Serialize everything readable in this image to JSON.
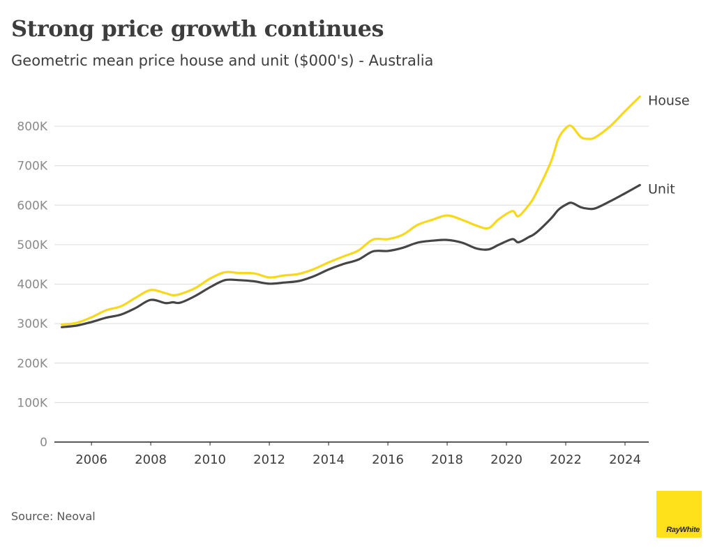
{
  "header": {
    "title": "Strong price growth continues",
    "subtitle": "Geometric mean price house and unit ($000's) - Australia"
  },
  "footer": {
    "source": "Source: Neoval",
    "logo_text": "RayWhite"
  },
  "colors": {
    "house": "#f7d81c",
    "unit": "#454545",
    "grid": "#dcdcdc",
    "axis": "#222222",
    "logo_bg": "#ffe11b"
  },
  "chart_data": {
    "type": "line",
    "title": "Strong price growth continues",
    "subtitle": "Geometric mean price house and unit ($000's) - Australia",
    "xlabel": "",
    "ylabel": "",
    "ylim": [
      0,
      800000
    ],
    "xlim": [
      2004.75,
      2024.8
    ],
    "y_ticks": [
      0,
      100000,
      200000,
      300000,
      400000,
      500000,
      600000,
      700000,
      800000
    ],
    "y_tick_labels": [
      "0",
      "100K",
      "200K",
      "300K",
      "400K",
      "500K",
      "600K",
      "700K",
      "800K"
    ],
    "x_ticks": [
      2006,
      2008,
      2010,
      2012,
      2014,
      2016,
      2018,
      2020,
      2022,
      2024
    ],
    "x_tick_labels": [
      "2006",
      "2008",
      "2010",
      "2012",
      "2014",
      "2016",
      "2018",
      "2020",
      "2022",
      "2024"
    ],
    "grid": true,
    "legend": "direct labels at line ends (right)",
    "series": [
      {
        "name": "House",
        "points": [
          [
            2005.0,
            298000
          ],
          [
            2005.5,
            302000
          ],
          [
            2006.0,
            316000
          ],
          [
            2006.5,
            334000
          ],
          [
            2007.0,
            344000
          ],
          [
            2007.5,
            366000
          ],
          [
            2008.0,
            385000
          ],
          [
            2008.5,
            377000
          ],
          [
            2008.75,
            372000
          ],
          [
            2009.0,
            375000
          ],
          [
            2009.5,
            390000
          ],
          [
            2010.0,
            414000
          ],
          [
            2010.5,
            430000
          ],
          [
            2011.0,
            428000
          ],
          [
            2011.5,
            427000
          ],
          [
            2012.0,
            417000
          ],
          [
            2012.5,
            422000
          ],
          [
            2013.0,
            426000
          ],
          [
            2013.5,
            438000
          ],
          [
            2014.0,
            455000
          ],
          [
            2014.5,
            470000
          ],
          [
            2015.0,
            485000
          ],
          [
            2015.5,
            513000
          ],
          [
            2016.0,
            514000
          ],
          [
            2016.5,
            525000
          ],
          [
            2017.0,
            550000
          ],
          [
            2017.5,
            563000
          ],
          [
            2018.0,
            574000
          ],
          [
            2018.5,
            563000
          ],
          [
            2019.0,
            548000
          ],
          [
            2019.4,
            542000
          ],
          [
            2019.75,
            565000
          ],
          [
            2020.2,
            585000
          ],
          [
            2020.4,
            572000
          ],
          [
            2020.75,
            600000
          ],
          [
            2021.0,
            630000
          ],
          [
            2021.5,
            710000
          ],
          [
            2021.75,
            768000
          ],
          [
            2022.0,
            795000
          ],
          [
            2022.2,
            800000
          ],
          [
            2022.5,
            773000
          ],
          [
            2022.75,
            768000
          ],
          [
            2023.0,
            772000
          ],
          [
            2023.5,
            800000
          ],
          [
            2024.0,
            838000
          ],
          [
            2024.5,
            875000
          ]
        ]
      },
      {
        "name": "Unit",
        "points": [
          [
            2005.0,
            291000
          ],
          [
            2005.5,
            295000
          ],
          [
            2006.0,
            304000
          ],
          [
            2006.5,
            315000
          ],
          [
            2007.0,
            323000
          ],
          [
            2007.5,
            340000
          ],
          [
            2008.0,
            360000
          ],
          [
            2008.5,
            352000
          ],
          [
            2008.75,
            354000
          ],
          [
            2009.0,
            353000
          ],
          [
            2009.5,
            370000
          ],
          [
            2010.0,
            392000
          ],
          [
            2010.5,
            410000
          ],
          [
            2011.0,
            410000
          ],
          [
            2011.5,
            407000
          ],
          [
            2012.0,
            401000
          ],
          [
            2012.5,
            404000
          ],
          [
            2013.0,
            408000
          ],
          [
            2013.5,
            420000
          ],
          [
            2014.0,
            437000
          ],
          [
            2014.5,
            451000
          ],
          [
            2015.0,
            462000
          ],
          [
            2015.5,
            483000
          ],
          [
            2016.0,
            484000
          ],
          [
            2016.5,
            492000
          ],
          [
            2017.0,
            505000
          ],
          [
            2017.5,
            510000
          ],
          [
            2018.0,
            512000
          ],
          [
            2018.5,
            505000
          ],
          [
            2019.0,
            490000
          ],
          [
            2019.4,
            488000
          ],
          [
            2019.75,
            500000
          ],
          [
            2020.2,
            514000
          ],
          [
            2020.4,
            506000
          ],
          [
            2020.75,
            519000
          ],
          [
            2021.0,
            530000
          ],
          [
            2021.5,
            566000
          ],
          [
            2021.75,
            588000
          ],
          [
            2022.0,
            601000
          ],
          [
            2022.2,
            606000
          ],
          [
            2022.5,
            595000
          ],
          [
            2022.75,
            591000
          ],
          [
            2023.0,
            592000
          ],
          [
            2023.5,
            610000
          ],
          [
            2024.0,
            630000
          ],
          [
            2024.5,
            651000
          ]
        ]
      }
    ]
  }
}
